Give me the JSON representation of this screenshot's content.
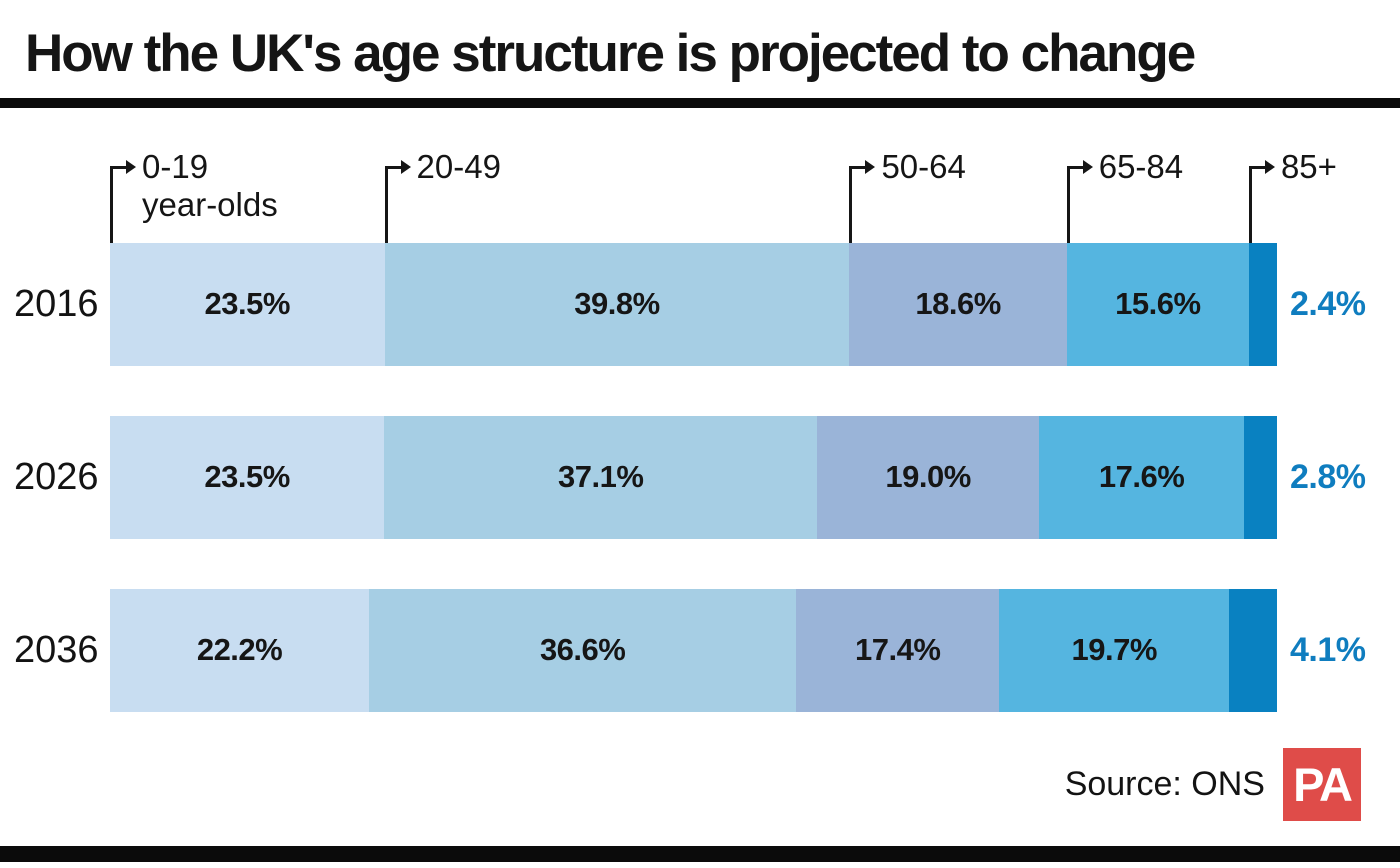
{
  "title": "How the UK's age structure is projected to change",
  "source": {
    "label": "Source: ONS",
    "logo_text": "PA"
  },
  "colors": {
    "background": "#ffffff",
    "title_text": "#151515",
    "title_rule": "#0b0b0b",
    "bottom_bar": "#0b0b0b",
    "segments": [
      "#c8ddf1",
      "#a6cee4",
      "#9ab4d8",
      "#55b5e0",
      "#0981c1"
    ],
    "outside_label": "#0f7dbf",
    "pa_logo_bg": "#df4c49",
    "pa_logo_text": "#ffffff"
  },
  "chart_data": {
    "type": "bar",
    "orientation": "horizontal",
    "stacked": true,
    "unit": "percent",
    "title": "How the UK's age structure is projected to change",
    "legend_position": "top-brackets",
    "categories": [
      {
        "label": "0-19",
        "sublabel": "year-olds"
      },
      {
        "label": "20-49"
      },
      {
        "label": "50-64"
      },
      {
        "label": "65-84"
      },
      {
        "label": "85+"
      }
    ],
    "series": [
      {
        "year": "2016",
        "values": [
          23.5,
          39.8,
          18.6,
          15.6,
          2.4
        ],
        "labels": [
          "23.5%",
          "39.8%",
          "18.6%",
          "15.6%",
          "2.4%"
        ]
      },
      {
        "year": "2026",
        "values": [
          23.5,
          37.1,
          19.0,
          17.6,
          2.8
        ],
        "labels": [
          "23.5%",
          "37.1%",
          "19.0%",
          "17.6%",
          "2.8%"
        ]
      },
      {
        "year": "2036",
        "values": [
          22.2,
          36.6,
          17.4,
          19.7,
          4.1
        ],
        "labels": [
          "22.2%",
          "36.6%",
          "17.4%",
          "19.7%",
          "4.1%"
        ]
      }
    ],
    "source": "Source: ONS"
  }
}
